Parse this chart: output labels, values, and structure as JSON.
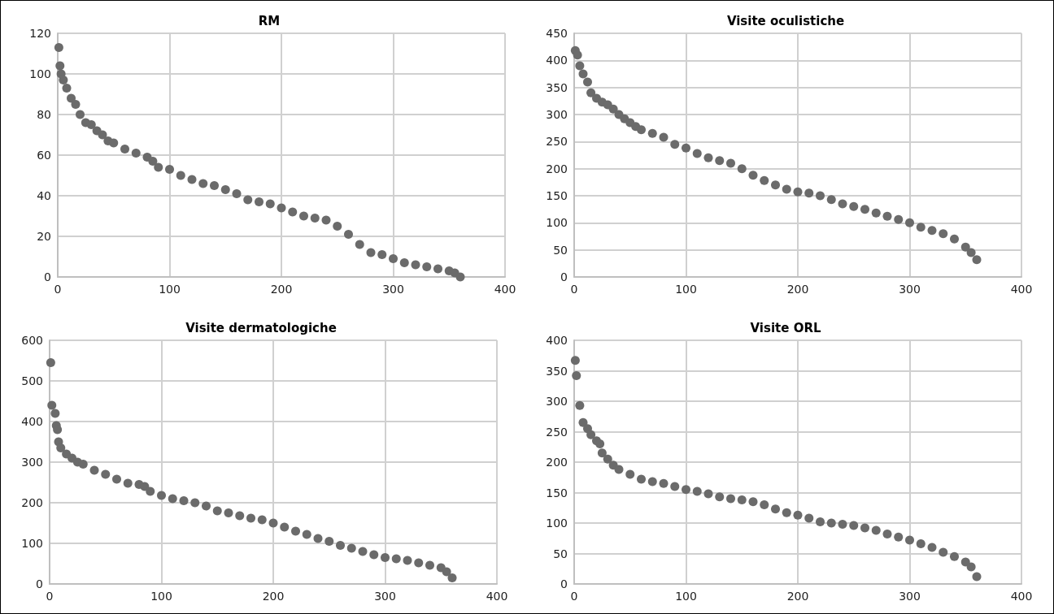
{
  "chart_data": [
    {
      "type": "scatter",
      "title": "RM",
      "xlim": [
        0,
        400
      ],
      "xticks": [
        0,
        100,
        200,
        300,
        400
      ],
      "ylim": [
        0,
        120
      ],
      "yticks": [
        0,
        20,
        40,
        60,
        80,
        100,
        120
      ],
      "grid": true,
      "marker": "circle",
      "series": [
        {
          "color": "#6b6b6b",
          "x": [
            1,
            2,
            3,
            5,
            8,
            12,
            16,
            20,
            25,
            30,
            35,
            40,
            45,
            50,
            60,
            70,
            80,
            85,
            90,
            100,
            110,
            120,
            130,
            140,
            150,
            160,
            170,
            180,
            190,
            200,
            210,
            220,
            230,
            240,
            250,
            260,
            270,
            280,
            290,
            300,
            310,
            320,
            330,
            340,
            350,
            355,
            360
          ],
          "values": [
            113,
            104,
            100,
            97,
            93,
            88,
            85,
            80,
            76,
            75,
            72,
            70,
            67,
            66,
            63,
            61,
            59,
            57,
            54,
            53,
            50,
            48,
            46,
            45,
            43,
            41,
            38,
            37,
            36,
            34,
            32,
            30,
            29,
            28,
            25,
            21,
            16,
            12,
            11,
            9,
            7,
            6,
            5,
            4,
            3,
            2,
            0
          ]
        }
      ]
    },
    {
      "type": "scatter",
      "title": "Visite oculistiche",
      "xlim": [
        0,
        400
      ],
      "xticks": [
        0,
        100,
        200,
        300,
        400
      ],
      "ylim": [
        0,
        450
      ],
      "yticks": [
        0,
        50,
        100,
        150,
        200,
        250,
        300,
        350,
        400,
        450
      ],
      "grid": true,
      "marker": "circle",
      "series": [
        {
          "color": "#6b6b6b",
          "x": [
            1,
            3,
            5,
            8,
            12,
            15,
            20,
            25,
            30,
            35,
            40,
            45,
            50,
            55,
            60,
            70,
            80,
            90,
            100,
            110,
            120,
            130,
            140,
            150,
            160,
            170,
            180,
            190,
            200,
            210,
            220,
            230,
            240,
            250,
            260,
            270,
            280,
            290,
            300,
            310,
            320,
            330,
            340,
            350,
            355,
            360
          ],
          "values": [
            418,
            410,
            390,
            375,
            360,
            340,
            330,
            323,
            318,
            310,
            300,
            292,
            285,
            278,
            272,
            265,
            258,
            245,
            238,
            228,
            220,
            215,
            210,
            200,
            188,
            178,
            170,
            162,
            157,
            155,
            150,
            143,
            135,
            130,
            125,
            118,
            112,
            106,
            100,
            92,
            86,
            80,
            70,
            55,
            45,
            32
          ]
        }
      ]
    },
    {
      "type": "scatter",
      "title": "Visite dermatologiche",
      "xlim": [
        0,
        400
      ],
      "xticks": [
        0,
        100,
        200,
        300,
        400
      ],
      "ylim": [
        0,
        600
      ],
      "yticks": [
        0,
        100,
        200,
        300,
        400,
        500,
        600
      ],
      "grid": true,
      "marker": "circle",
      "series": [
        {
          "color": "#6b6b6b",
          "x": [
            1,
            2,
            5,
            6,
            7,
            8,
            10,
            15,
            20,
            25,
            30,
            40,
            50,
            60,
            70,
            80,
            85,
            90,
            100,
            110,
            120,
            130,
            140,
            150,
            160,
            170,
            180,
            190,
            200,
            210,
            220,
            230,
            240,
            250,
            260,
            270,
            280,
            290,
            300,
            310,
            320,
            330,
            340,
            350,
            355,
            360
          ],
          "values": [
            545,
            440,
            420,
            390,
            380,
            350,
            335,
            320,
            310,
            300,
            295,
            280,
            270,
            258,
            248,
            245,
            240,
            228,
            218,
            210,
            205,
            200,
            192,
            180,
            175,
            168,
            162,
            158,
            150,
            140,
            130,
            122,
            112,
            105,
            95,
            88,
            80,
            72,
            65,
            62,
            58,
            52,
            46,
            40,
            30,
            15
          ]
        }
      ]
    },
    {
      "type": "scatter",
      "title": "Visite ORL",
      "xlim": [
        0,
        400
      ],
      "xticks": [
        0,
        100,
        200,
        300,
        400
      ],
      "ylim": [
        0,
        400
      ],
      "yticks": [
        0,
        50,
        100,
        150,
        200,
        250,
        300,
        350,
        400
      ],
      "grid": true,
      "marker": "circle",
      "series": [
        {
          "color": "#6b6b6b",
          "x": [
            1,
            2,
            5,
            8,
            12,
            15,
            20,
            23,
            25,
            30,
            35,
            40,
            50,
            60,
            70,
            80,
            90,
            100,
            110,
            120,
            130,
            140,
            150,
            160,
            170,
            180,
            190,
            200,
            210,
            220,
            230,
            240,
            250,
            260,
            270,
            280,
            290,
            300,
            310,
            320,
            330,
            340,
            350,
            355,
            360
          ],
          "values": [
            367,
            342,
            293,
            265,
            255,
            245,
            235,
            230,
            215,
            205,
            195,
            188,
            180,
            172,
            168,
            165,
            160,
            155,
            152,
            148,
            143,
            140,
            138,
            135,
            130,
            123,
            117,
            113,
            108,
            102,
            100,
            98,
            96,
            92,
            88,
            82,
            77,
            72,
            66,
            60,
            52,
            45,
            36,
            28,
            12
          ]
        }
      ]
    }
  ]
}
